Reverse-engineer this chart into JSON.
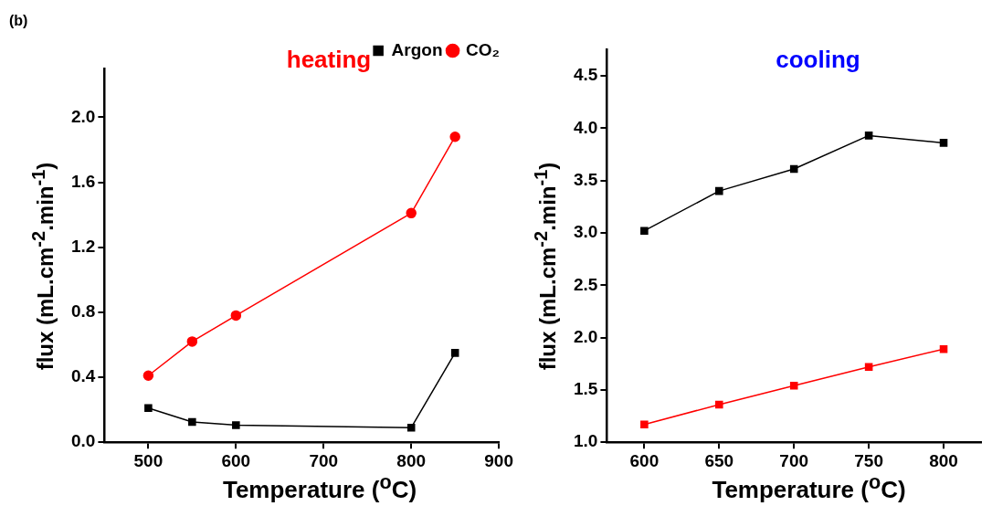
{
  "chart_data": [
    {
      "type": "line",
      "title": "heating",
      "xlabel": "Temperature ($^{o}$C)",
      "ylabel": "flux (mL.cm$^{-2}$.min$^{-1}$)",
      "x": [
        500,
        550,
        600,
        800,
        850
      ],
      "series": [
        {
          "name": "Argon",
          "color": "#000000",
          "marker": "square",
          "values": [
            0.21,
            0.125,
            0.105,
            0.09,
            0.55
          ]
        },
        {
          "name": "CO₂",
          "color": "#ff0000",
          "marker": "circle",
          "values": [
            0.41,
            0.62,
            0.78,
            1.41,
            1.88
          ]
        }
      ],
      "xlim": [
        450,
        900
      ],
      "xticks": [
        500,
        600,
        700,
        800,
        900
      ],
      "ylim": [
        0,
        2.3
      ],
      "yticks": [
        {
          "value": 0,
          "label": "0.0"
        },
        0.4,
        0.8,
        1.2,
        1.6,
        {
          "value": 2,
          "label": "2.0"
        }
      ],
      "grid": false,
      "legend": "top right",
      "annotations": [
        "(b)"
      ]
    },
    {
      "type": "line",
      "title": "cooling",
      "xlabel": "Temperature ($^{o}$C)",
      "ylabel": "flux (mL.cm$^{-2}$.min$^{-1}$)",
      "x": [
        600,
        650,
        700,
        750,
        800
      ],
      "series": [
        {
          "color": "#000000",
          "values": [
            3.02,
            3.4,
            3.61,
            3.93,
            3.86
          ]
        },
        {
          "color": "#ff0000",
          "values": [
            1.17,
            1.36,
            1.54,
            1.72,
            1.89
          ]
        }
      ],
      "xlim": [
        575,
        825
      ],
      "xticks": [
        600,
        650,
        700,
        750,
        800
      ],
      "ylim": [
        1,
        4.75
      ],
      "yticks": [
        {
          "value": 1,
          "label": "1.0"
        },
        1.5,
        {
          "value": 2,
          "label": "2.0"
        },
        2.5,
        {
          "value": 3,
          "label": "3.0"
        },
        3.5,
        {
          "value": 4,
          "label": "4.0"
        },
        4.5
      ],
      "grid": false,
      "legend": false,
      "marker": "square"
    }
  ]
}
